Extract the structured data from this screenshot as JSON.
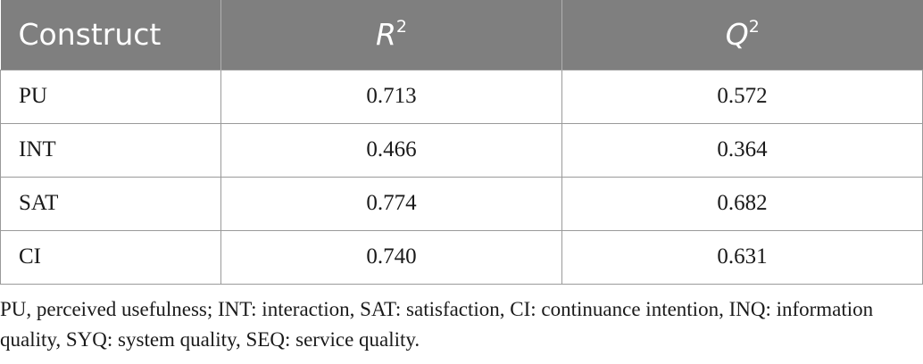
{
  "table": {
    "headers": [
      {
        "main": "Construct",
        "sup": ""
      },
      {
        "main": "R",
        "sup": "2"
      },
      {
        "main": "Q",
        "sup": "2"
      }
    ],
    "rows": [
      [
        "PU",
        "0.713",
        "0.572"
      ],
      [
        "INT",
        "0.466",
        "0.364"
      ],
      [
        "SAT",
        "0.774",
        "0.682"
      ],
      [
        "CI",
        "0.740",
        "0.631"
      ]
    ]
  },
  "footnote": "PU, perceived usefulness; INT: interaction, SAT: satisfaction, CI: continuance intention, INQ: information quality, SYQ: system quality, SEQ: service quality.",
  "colors": {
    "header_bg": "#7f7f7f",
    "header_text": "#ffffff",
    "grid": "#9a9a9a"
  }
}
